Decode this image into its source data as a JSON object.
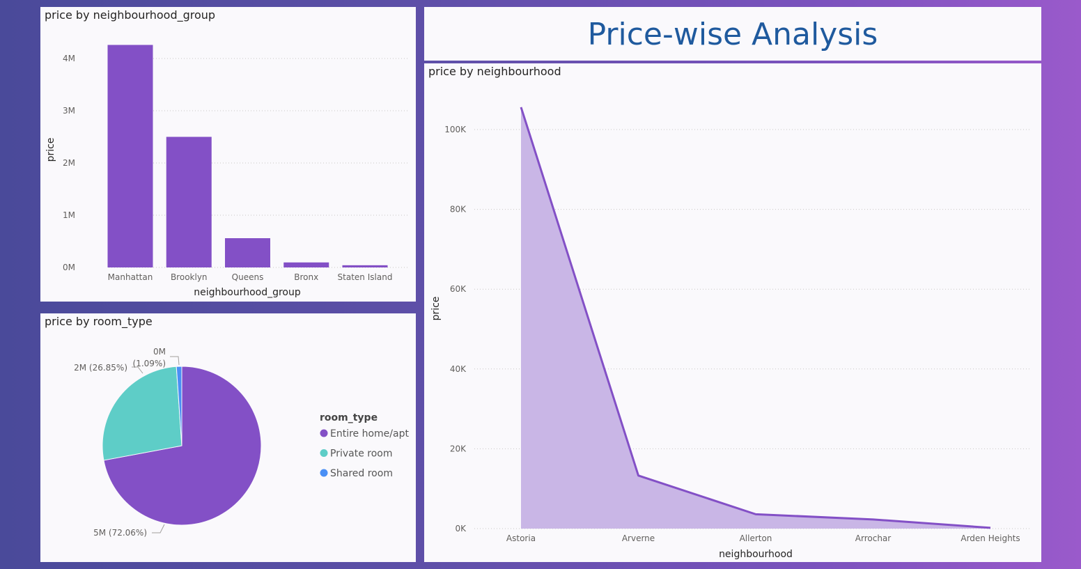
{
  "dashboard": {
    "title": "Price-wise Analysis"
  },
  "chart_data": [
    {
      "type": "bar",
      "title": "price by neighbourhood_group",
      "xlabel": "neighbourhood_group",
      "ylabel": "price",
      "categories": [
        "Manhattan",
        "Brooklyn",
        "Queens",
        "Bronx",
        "Staten Island"
      ],
      "values": [
        4260000,
        2500000,
        560000,
        96000,
        42000
      ],
      "ylim": [
        0,
        4000000
      ],
      "yticks": [
        0,
        1000000,
        2000000,
        3000000,
        4000000
      ],
      "ytick_labels": [
        "0M",
        "1M",
        "2M",
        "3M",
        "4M"
      ],
      "color": "#8350c6",
      "grid": true
    },
    {
      "type": "pie",
      "title": "price by room_type",
      "legend_title": "room_type",
      "categories": [
        "Entire home/apt",
        "Private room",
        "Shared room"
      ],
      "values": [
        72.06,
        26.85,
        1.09
      ],
      "labels": [
        "5M (72.06%)",
        "2M (26.85%)",
        "0M\n(1.09%)"
      ],
      "colors": [
        "#8350c6",
        "#5ecdc7",
        "#4a8ff5"
      ],
      "legend_position": "right"
    },
    {
      "type": "area",
      "title": "price by neighbourhood",
      "xlabel": "neighbourhood",
      "ylabel": "price",
      "categories": [
        "Astoria",
        "Arverne",
        "Allerton",
        "Arrochar",
        "Arden Heights"
      ],
      "values": [
        105600,
        13300,
        3600,
        2300,
        200
      ],
      "ylim": [
        0,
        100000
      ],
      "yticks": [
        0,
        20000,
        40000,
        60000,
        80000,
        100000
      ],
      "ytick_labels": [
        "0K",
        "20K",
        "40K",
        "60K",
        "80K",
        "100K"
      ],
      "line_color": "#8350c6",
      "fill_color": "#c9b6e6",
      "grid": true
    }
  ]
}
